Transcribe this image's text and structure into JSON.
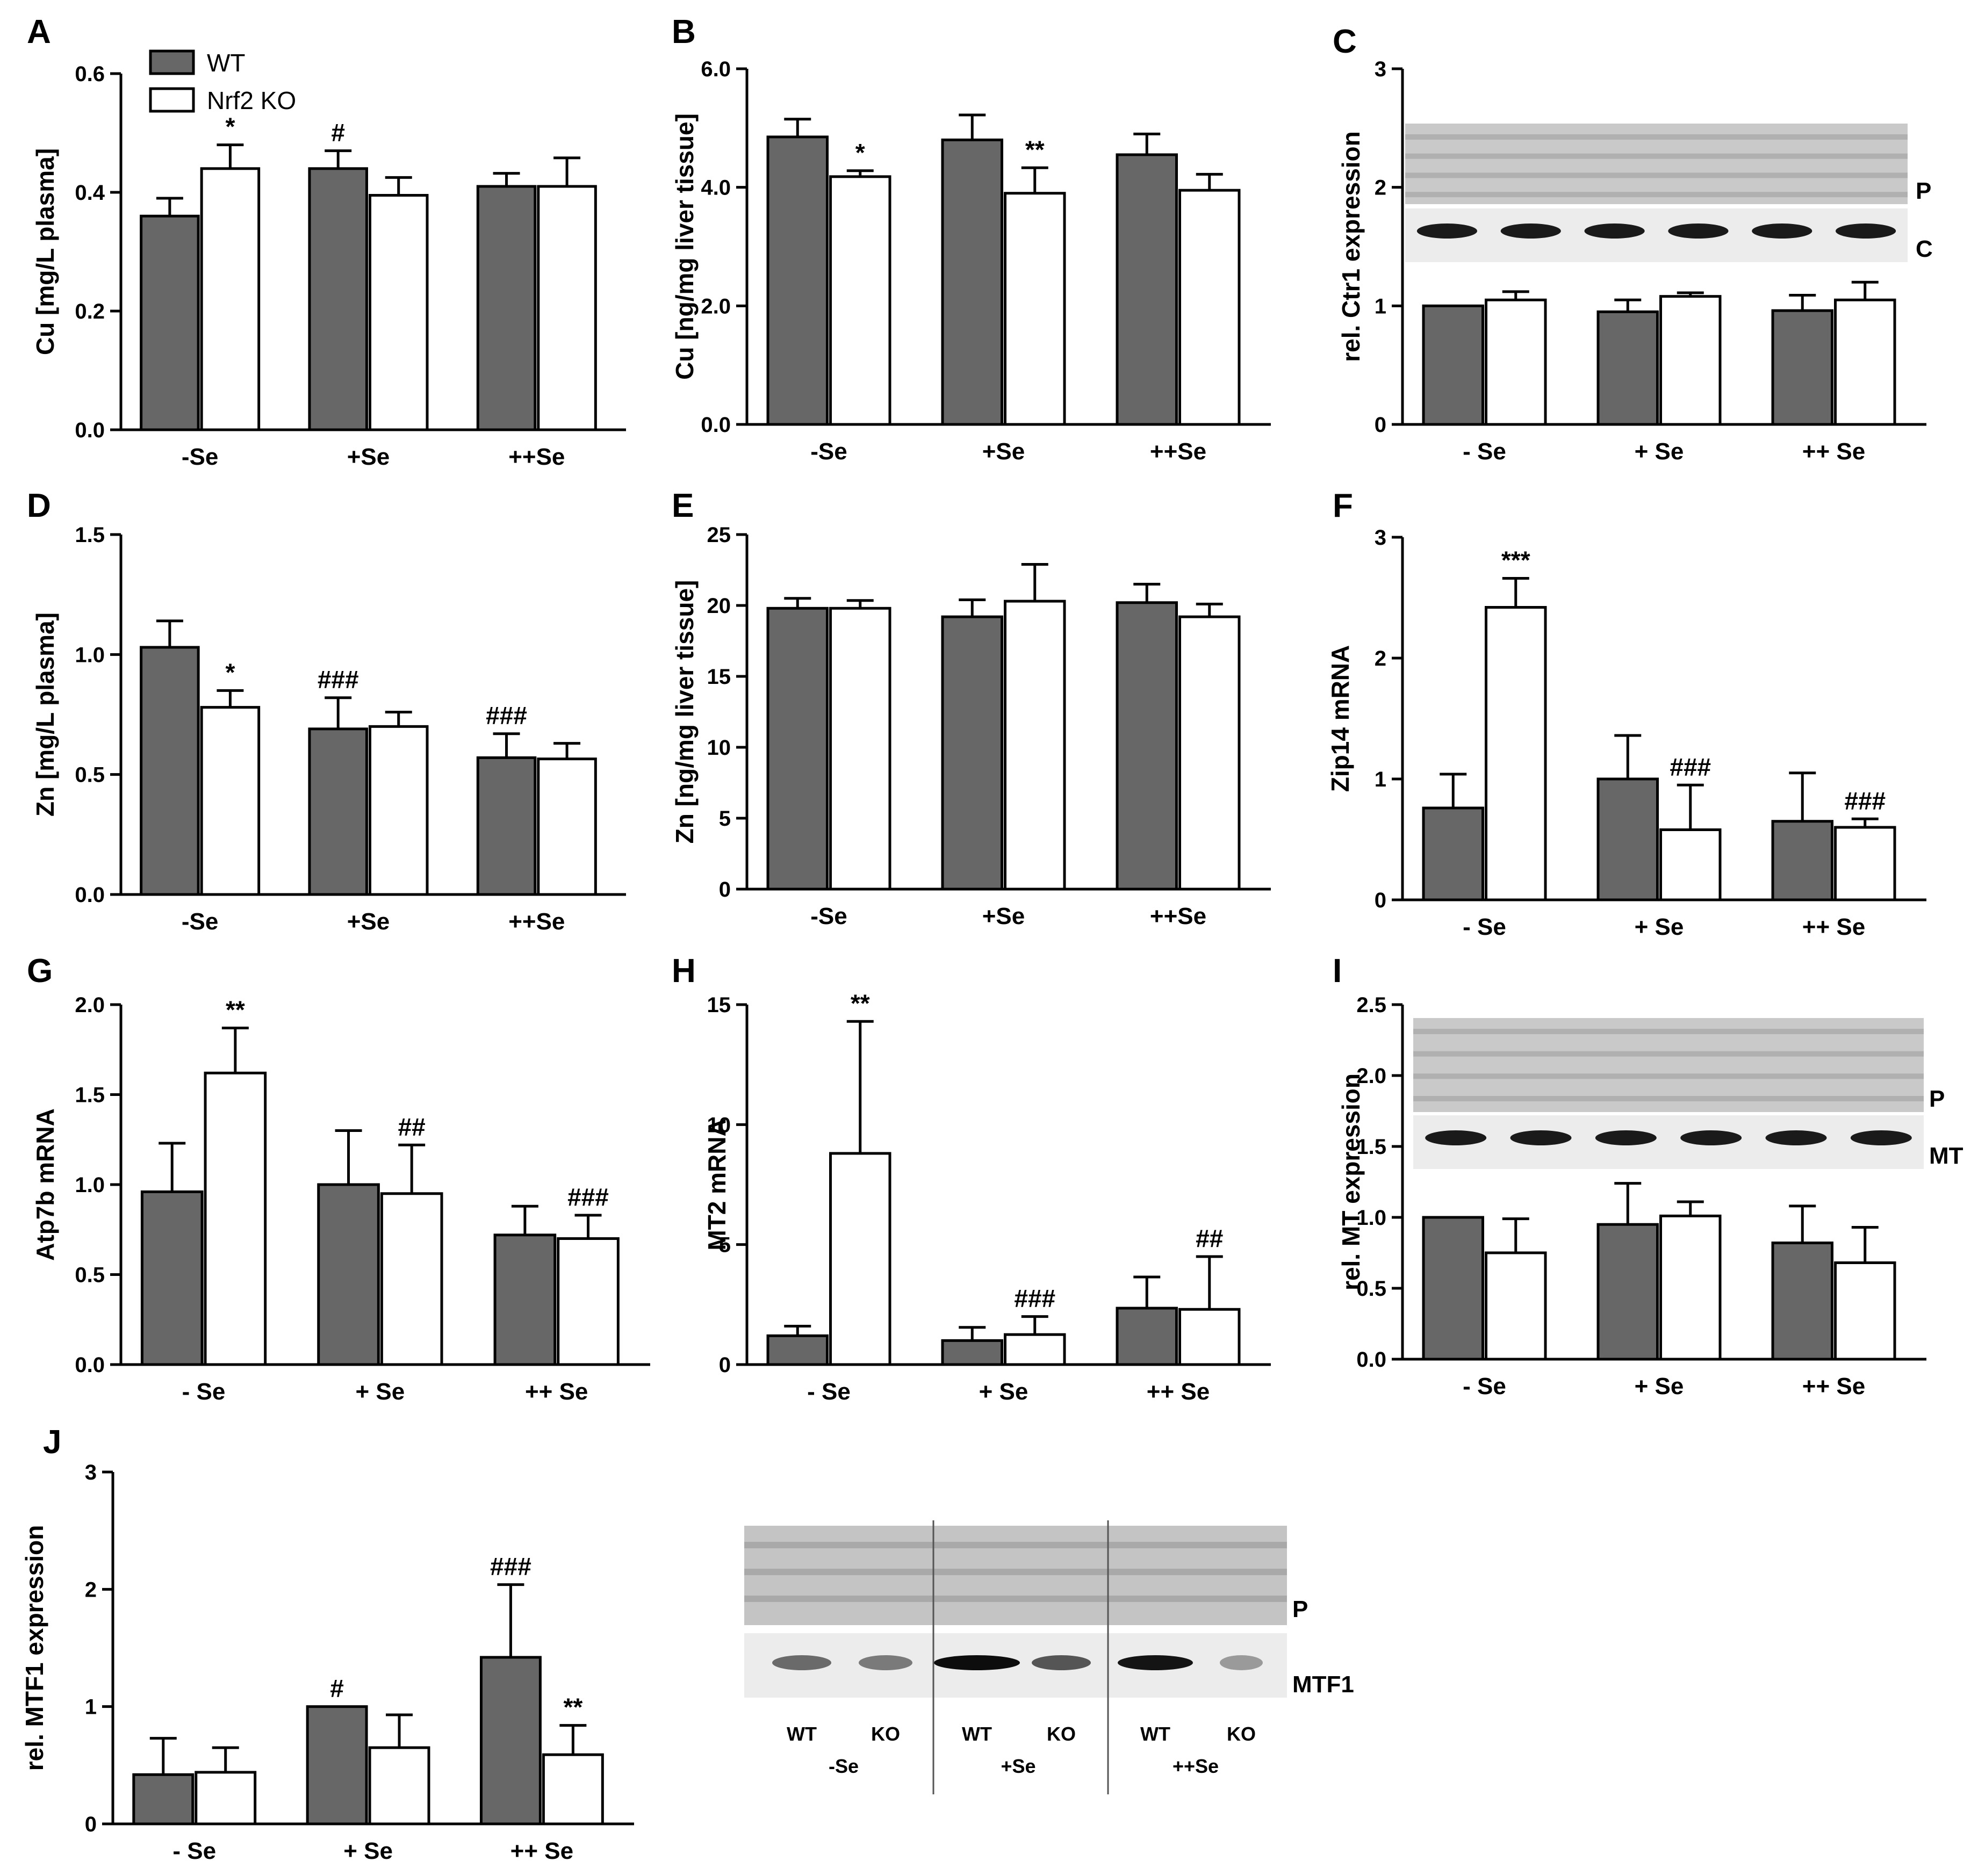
{
  "figure": {
    "legend": [
      {
        "name": "WT",
        "color": "#676767"
      },
      {
        "name": "Nrf2 KO",
        "color": "#ffffff"
      }
    ],
    "bar_colors": {
      "wt": "#676767",
      "ko": "#ffffff",
      "stroke": "#000000"
    }
  },
  "chart_data": [
    {
      "id": "A",
      "panel_label": "A",
      "type": "bar",
      "ylabel": "Cu [mg/L plasma]",
      "categories": [
        "-Se",
        "+Se",
        "++Se"
      ],
      "ylim": [
        0,
        0.6
      ],
      "ticks": [
        0.0,
        0.2,
        0.4,
        0.6
      ],
      "tick_labels": [
        "0.0",
        "0.2",
        "0.4",
        "0.6"
      ],
      "series": [
        {
          "name": "WT",
          "values": [
            0.36,
            0.44,
            0.41
          ],
          "errors": [
            0.03,
            0.03,
            0.022
          ]
        },
        {
          "name": "Nrf2 KO",
          "values": [
            0.44,
            0.395,
            0.41
          ],
          "errors": [
            0.04,
            0.03,
            0.048
          ]
        }
      ],
      "annotations": [
        {
          "series": 1,
          "category": 0,
          "text": "*"
        },
        {
          "series": 0,
          "category": 1,
          "text": "#"
        }
      ]
    },
    {
      "id": "B",
      "panel_label": "B",
      "type": "bar",
      "ylabel": "Cu [ng/mg liver tissue]",
      "categories": [
        "-Se",
        "+Se",
        "++Se"
      ],
      "ylim": [
        0,
        6
      ],
      "ticks": [
        0,
        2,
        4,
        6
      ],
      "tick_labels": [
        "0.0",
        "2.0",
        "4.0",
        "6.0"
      ],
      "series": [
        {
          "name": "WT",
          "values": [
            4.85,
            4.8,
            4.55
          ],
          "errors": [
            0.3,
            0.42,
            0.35
          ]
        },
        {
          "name": "Nrf2 KO",
          "values": [
            4.18,
            3.9,
            3.95
          ],
          "errors": [
            0.1,
            0.43,
            0.27
          ]
        }
      ],
      "annotations": [
        {
          "series": 1,
          "category": 0,
          "text": "*"
        },
        {
          "series": 1,
          "category": 1,
          "text": "**"
        }
      ]
    },
    {
      "id": "C",
      "panel_label": "C",
      "type": "bar",
      "ylabel": "rel. Ctr1 expression",
      "categories": [
        "- Se",
        "+ Se",
        "++ Se"
      ],
      "ylim": [
        0,
        3
      ],
      "ticks": [
        0,
        1,
        2,
        3
      ],
      "tick_labels": [
        "0",
        "1",
        "2",
        "3"
      ],
      "series": [
        {
          "name": "WT",
          "values": [
            1.0,
            0.95,
            0.96
          ],
          "errors": [
            0.0,
            0.1,
            0.13
          ]
        },
        {
          "name": "Nrf2 KO",
          "values": [
            1.05,
            1.08,
            1.05
          ],
          "errors": [
            0.07,
            0.03,
            0.15
          ]
        }
      ],
      "annotations": [],
      "blot": {
        "labels": [
          "P",
          "C"
        ],
        "lanes": 6
      }
    },
    {
      "id": "D",
      "panel_label": "D",
      "type": "bar",
      "ylabel": "Zn [mg/L plasma]",
      "categories": [
        "-Se",
        "+Se",
        "++Se"
      ],
      "ylim": [
        0,
        1.5
      ],
      "ticks": [
        0,
        0.5,
        1.0,
        1.5
      ],
      "tick_labels": [
        "0.0",
        "0.5",
        "1.0",
        "1.5"
      ],
      "series": [
        {
          "name": "WT",
          "values": [
            1.03,
            0.69,
            0.57
          ],
          "errors": [
            0.11,
            0.13,
            0.1
          ]
        },
        {
          "name": "Nrf2 KO",
          "values": [
            0.78,
            0.7,
            0.565
          ],
          "errors": [
            0.07,
            0.06,
            0.065
          ]
        }
      ],
      "annotations": [
        {
          "series": 1,
          "category": 0,
          "text": "*"
        },
        {
          "series": 0,
          "category": 1,
          "text": "###"
        },
        {
          "series": 0,
          "category": 2,
          "text": "###"
        }
      ]
    },
    {
      "id": "E",
      "panel_label": "E",
      "type": "bar",
      "ylabel": "Zn [ng/mg liver tissue]",
      "categories": [
        "-Se",
        "+Se",
        "++Se"
      ],
      "ylim": [
        0,
        25
      ],
      "ticks": [
        0,
        5,
        10,
        15,
        20,
        25
      ],
      "tick_labels": [
        "0",
        "5",
        "10",
        "15",
        "20",
        "25"
      ],
      "series": [
        {
          "name": "WT",
          "values": [
            19.8,
            19.2,
            20.2
          ],
          "errors": [
            0.7,
            1.2,
            1.3
          ]
        },
        {
          "name": "Nrf2 KO",
          "values": [
            19.8,
            20.3,
            19.2
          ],
          "errors": [
            0.55,
            2.6,
            0.9
          ]
        }
      ],
      "annotations": []
    },
    {
      "id": "F",
      "panel_label": "F",
      "type": "bar",
      "ylabel": "Zip14 mRNA",
      "categories": [
        "- Se",
        "+ Se",
        "++ Se"
      ],
      "ylim": [
        0,
        3
      ],
      "ticks": [
        0,
        1,
        2,
        3
      ],
      "tick_labels": [
        "0",
        "1",
        "2",
        "3"
      ],
      "series": [
        {
          "name": "WT",
          "values": [
            0.76,
            1.0,
            0.65
          ],
          "errors": [
            0.28,
            0.36,
            0.4
          ]
        },
        {
          "name": "Nrf2 KO",
          "values": [
            2.42,
            0.58,
            0.6
          ],
          "errors": [
            0.24,
            0.37,
            0.07
          ]
        }
      ],
      "annotations": [
        {
          "series": 1,
          "category": 0,
          "text": "***"
        },
        {
          "series": 1,
          "category": 1,
          "text": "###"
        },
        {
          "series": 1,
          "category": 2,
          "text": "###"
        }
      ]
    },
    {
      "id": "G",
      "panel_label": "G",
      "type": "bar",
      "ylabel": "Atp7b mRNA",
      "categories": [
        "- Se",
        "+ Se",
        "++ Se"
      ],
      "ylim": [
        0,
        2
      ],
      "ticks": [
        0,
        0.5,
        1.0,
        1.5,
        2.0
      ],
      "tick_labels": [
        "0.0",
        "0.5",
        "1.0",
        "1.5",
        "2.0"
      ],
      "series": [
        {
          "name": "WT",
          "values": [
            0.96,
            1.0,
            0.72
          ],
          "errors": [
            0.27,
            0.3,
            0.16
          ]
        },
        {
          "name": "Nrf2 KO",
          "values": [
            1.62,
            0.95,
            0.7
          ],
          "errors": [
            0.25,
            0.27,
            0.13
          ]
        }
      ],
      "annotations": [
        {
          "series": 1,
          "category": 0,
          "text": "**"
        },
        {
          "series": 1,
          "category": 1,
          "text": "##"
        },
        {
          "series": 1,
          "category": 2,
          "text": "###"
        }
      ]
    },
    {
      "id": "H",
      "panel_label": "H",
      "type": "bar",
      "ylabel": "MT2 mRNA",
      "categories": [
        "- Se",
        "+ Se",
        "++ Se"
      ],
      "ylim": [
        0,
        15
      ],
      "ticks": [
        0,
        5,
        10,
        15
      ],
      "tick_labels": [
        "0",
        "5",
        "10",
        "15"
      ],
      "series": [
        {
          "name": "WT",
          "values": [
            1.2,
            1.0,
            2.35
          ],
          "errors": [
            0.4,
            0.55,
            1.3
          ]
        },
        {
          "name": "Nrf2 KO",
          "values": [
            8.8,
            1.25,
            2.3
          ],
          "errors": [
            5.5,
            0.75,
            2.2
          ]
        }
      ],
      "annotations": [
        {
          "series": 1,
          "category": 0,
          "text": "**"
        },
        {
          "series": 1,
          "category": 1,
          "text": "###"
        },
        {
          "series": 1,
          "category": 2,
          "text": "##"
        }
      ]
    },
    {
      "id": "I",
      "panel_label": "I",
      "type": "bar",
      "ylabel": "rel. MT expression",
      "categories": [
        "- Se",
        "+ Se",
        "++ Se"
      ],
      "ylim": [
        0,
        2.5
      ],
      "ticks": [
        0,
        0.5,
        1.0,
        1.5,
        2.0,
        2.5
      ],
      "tick_labels": [
        "0.0",
        "0.5",
        "1.0",
        "1.5",
        "2.0",
        "2.5"
      ],
      "series": [
        {
          "name": "WT",
          "values": [
            1.0,
            0.95,
            0.82
          ],
          "errors": [
            0.0,
            0.29,
            0.26
          ]
        },
        {
          "name": "Nrf2 KO",
          "values": [
            0.75,
            1.01,
            0.68
          ],
          "errors": [
            0.24,
            0.1,
            0.25
          ]
        }
      ],
      "annotations": [],
      "blot": {
        "labels": [
          "P",
          "MT"
        ],
        "lanes": 6
      }
    },
    {
      "id": "J",
      "panel_label": "J",
      "type": "bar",
      "ylabel": "rel. MTF1 expression",
      "categories": [
        "- Se",
        "+ Se",
        "++ Se"
      ],
      "ylim": [
        0,
        3
      ],
      "ticks": [
        0,
        1,
        2,
        3
      ],
      "tick_labels": [
        "0",
        "1",
        "2",
        "3"
      ],
      "series": [
        {
          "name": "WT",
          "values": [
            0.42,
            1.0,
            1.42
          ],
          "errors": [
            0.31,
            0.0,
            0.62
          ]
        },
        {
          "name": "Nrf2 KO",
          "values": [
            0.44,
            0.65,
            0.59
          ],
          "errors": [
            0.21,
            0.28,
            0.25
          ]
        }
      ],
      "annotations": [
        {
          "series": 0,
          "category": 1,
          "text": "#"
        },
        {
          "series": 0,
          "category": 2,
          "text": "###"
        },
        {
          "series": 1,
          "category": 2,
          "text": "**"
        }
      ]
    }
  ],
  "mtf1_blot": {
    "labels": [
      "P",
      "MTF1"
    ],
    "lane_labels": [
      "WT",
      "KO",
      "WT",
      "KO",
      "WT",
      "KO"
    ],
    "group_labels": [
      "-Se",
      "+Se",
      "++Se"
    ]
  }
}
